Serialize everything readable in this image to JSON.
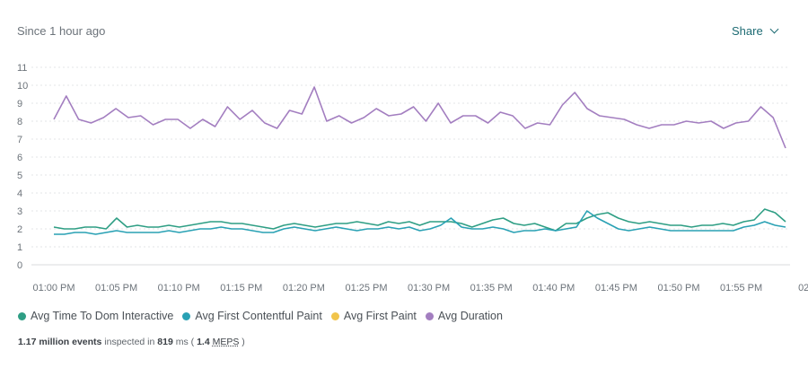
{
  "header": {
    "range_label": "Since 1 hour ago",
    "share_label": "Share"
  },
  "chart_data": {
    "type": "line",
    "ylim": [
      0,
      11
    ],
    "y_ticks": [
      "0",
      "1",
      "2",
      "3",
      "4",
      "5",
      "6",
      "7",
      "8",
      "9",
      "10",
      "11"
    ],
    "x_ticks": [
      "01:00 PM",
      "01:05 PM",
      "01:10 PM",
      "01:15 PM",
      "01:20 PM",
      "01:25 PM",
      "01:30 PM",
      "01:35 PM",
      "01:40 PM",
      "01:45 PM",
      "01:50 PM",
      "01:55 PM",
      "02"
    ],
    "grid": true,
    "legend_position": "bottom-left",
    "series": [
      {
        "name": "Avg Time To Dom Interactive",
        "color": "#2e9e84",
        "values": [
          2.1,
          2.0,
          2.0,
          2.1,
          2.1,
          2.0,
          2.6,
          2.1,
          2.2,
          2.1,
          2.1,
          2.2,
          2.1,
          2.2,
          2.3,
          2.4,
          2.4,
          2.3,
          2.3,
          2.2,
          2.1,
          2.0,
          2.2,
          2.3,
          2.2,
          2.1,
          2.2,
          2.3,
          2.3,
          2.4,
          2.3,
          2.2,
          2.4,
          2.3,
          2.4,
          2.2,
          2.4,
          2.4,
          2.4,
          2.3,
          2.1,
          2.3,
          2.5,
          2.6,
          2.3,
          2.2,
          2.3,
          2.1,
          1.9,
          2.3,
          2.3,
          2.6,
          2.8,
          2.9,
          2.6,
          2.4,
          2.3,
          2.4,
          2.3,
          2.2,
          2.2,
          2.1,
          2.2,
          2.2,
          2.3,
          2.2,
          2.4,
          2.5,
          3.1,
          2.9,
          2.4
        ]
      },
      {
        "name": "Avg First Contentful Paint",
        "color": "#29a1b4",
        "values": [
          1.7,
          1.7,
          1.8,
          1.8,
          1.7,
          1.8,
          1.9,
          1.8,
          1.8,
          1.8,
          1.8,
          1.9,
          1.8,
          1.9,
          2.0,
          2.0,
          2.1,
          2.0,
          2.0,
          1.9,
          1.8,
          1.8,
          2.0,
          2.1,
          2.0,
          1.9,
          2.0,
          2.1,
          2.0,
          1.9,
          2.0,
          2.0,
          2.1,
          2.0,
          2.1,
          1.9,
          2.0,
          2.2,
          2.6,
          2.1,
          2.0,
          2.0,
          2.1,
          2.0,
          1.8,
          1.9,
          1.9,
          2.0,
          1.9,
          2.0,
          2.1,
          3.0,
          2.6,
          2.3,
          2.0,
          1.9,
          2.0,
          2.1,
          2.0,
          1.9,
          1.9,
          1.9,
          1.9,
          1.9,
          1.9,
          1.9,
          2.1,
          2.2,
          2.4,
          2.2,
          2.1
        ]
      },
      {
        "name": "Avg First Paint",
        "color": "#f1c44b",
        "values": []
      },
      {
        "name": "Avg Duration",
        "color": "#a37ec0",
        "values": [
          8.1,
          9.4,
          8.1,
          7.9,
          8.2,
          8.7,
          8.2,
          8.3,
          7.8,
          8.1,
          8.1,
          7.6,
          8.1,
          7.7,
          8.8,
          8.1,
          8.6,
          7.9,
          7.6,
          8.6,
          8.4,
          9.9,
          8.0,
          8.3,
          7.9,
          8.2,
          8.7,
          8.3,
          8.4,
          8.8,
          8.0,
          9.0,
          7.9,
          8.3,
          8.3,
          7.9,
          8.5,
          8.3,
          7.6,
          7.9,
          7.8,
          8.9,
          9.6,
          8.7,
          8.3,
          8.2,
          8.1,
          7.8,
          7.6,
          7.8,
          7.8,
          8.0,
          7.9,
          8.0,
          7.6,
          7.9,
          8.0,
          8.8,
          8.2,
          6.5
        ]
      }
    ]
  },
  "footer": {
    "events": "1.17 million events",
    "inspected_text": "inspected in",
    "ms_value": "819",
    "ms_unit": "ms (",
    "meps_value": "1.4",
    "meps_label": "MEPS",
    "close_paren": ")"
  }
}
